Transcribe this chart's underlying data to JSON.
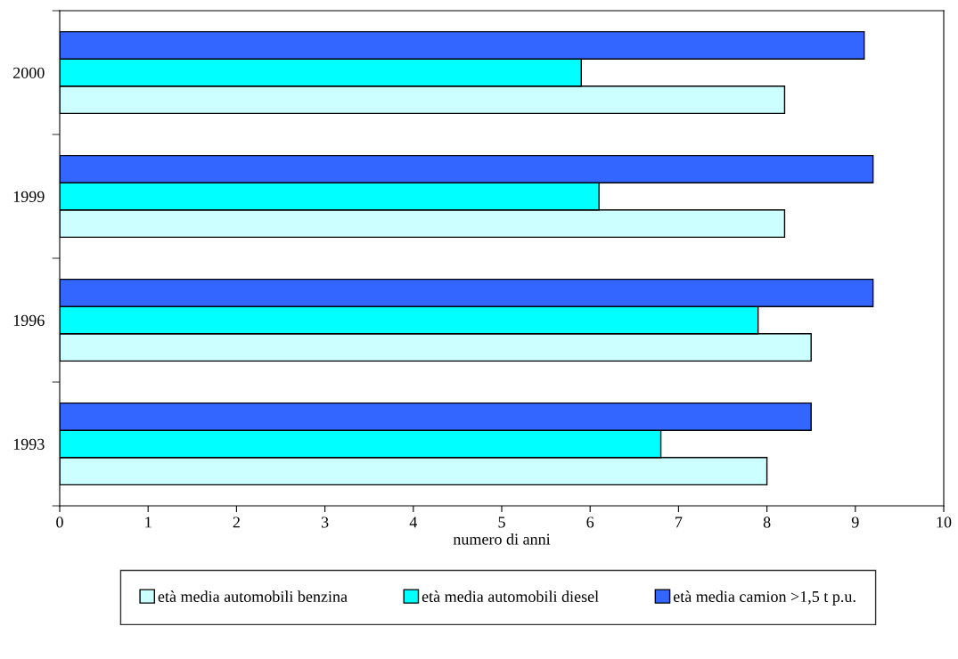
{
  "chart_data": {
    "type": "bar",
    "orientation": "horizontal",
    "xlabel": "numero di anni",
    "categories": [
      "2000",
      "1999",
      "1996",
      "1993"
    ],
    "series": [
      {
        "name": "età media automobili benzina",
        "color": "#ccffff",
        "values": [
          8.2,
          8.2,
          8.5,
          8.0
        ]
      },
      {
        "name": "età media automobili diesel",
        "color": "#00ffff",
        "values": [
          5.9,
          6.1,
          7.9,
          6.8
        ]
      },
      {
        "name": "età media camion >1,5 t p.u.",
        "color": "#3366ff",
        "values": [
          9.1,
          9.2,
          9.2,
          8.5
        ]
      }
    ],
    "xlim": [
      0,
      10
    ],
    "xticks": [
      0,
      1,
      2,
      3,
      4,
      5,
      6,
      7,
      8,
      9,
      10
    ],
    "grid": false,
    "legend": "bottom"
  }
}
